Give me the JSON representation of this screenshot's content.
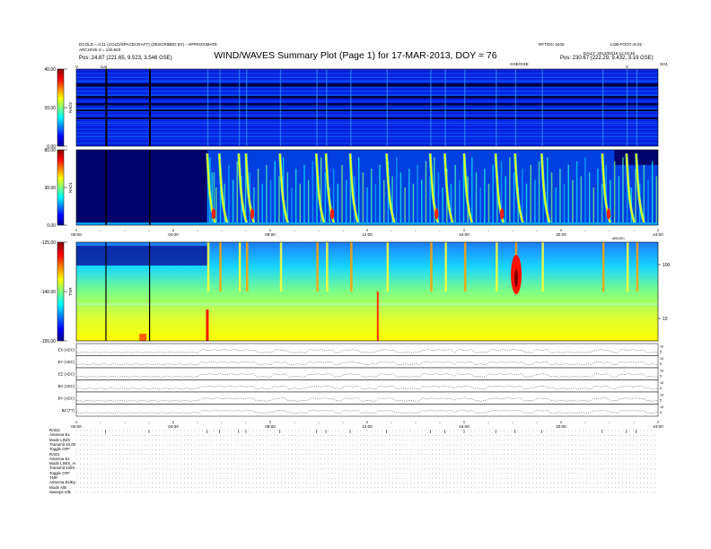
{
  "header": {
    "left_line1": "DCOLD = 0.11 (COLD/SPACECRAFT) (DESCRIBED BY) - APPROXIMATE",
    "left_line2": "ARCHIVE-3 = 130.603",
    "right_line1": "RFT/DC-3440",
    "right_line2": "LOB-FOOT=8.01",
    "right_line3": "DAILY: 2013/03/18 11:18:36",
    "title": "WIND/WAVES Summary Plot (Page 1) for 17-MAR-2013, DOY = 76",
    "pos_left": "Pos:   24.87 (221.65, 9.523, 3.546 GSE)",
    "pos_right": "Pos:   230.67 (222.29, 9.432, 3.19 GSE)",
    "mark_gse": "GSE/GSE",
    "mark_cal": "Cal",
    "mark_v": "V",
    "mark_v2": "V",
    "mark_rt": "SH1"
  },
  "panels": {
    "rad2": {
      "name": "RAD2",
      "ticks": [
        "40.00",
        "20.00",
        "0.00"
      ]
    },
    "rad1": {
      "name": "RAD1",
      "ticks": [
        "80.00",
        "30.00",
        "0.00"
      ]
    },
    "tnr": {
      "name": "TNR",
      "ticks": [
        "-125.00",
        "-140.00",
        "-155.00"
      ],
      "right_ticks": [
        "100",
        "10"
      ],
      "right_tag": "dB/VEC"
    },
    "time_ticks_top": [
      "00:00",
      "04:00",
      "08:00",
      "12:00",
      "16:00",
      "20:00",
      "24:00"
    ],
    "time_ticks_bottom": [
      "00:00",
      "04:00",
      "08:00",
      "12:00",
      "16:00",
      "20:00",
      "24:00"
    ]
  },
  "line_panels": [
    {
      "label": "EX (ADC)",
      "ticks": [
        "10",
        "5"
      ]
    },
    {
      "label": "EY (ADC)",
      "ticks": [
        "10",
        "5"
      ]
    },
    {
      "label": "EZ (ADC)",
      "ticks": [
        "10",
        "5"
      ]
    },
    {
      "label": "BX (ADC)",
      "ticks": [
        "10",
        "5"
      ]
    },
    {
      "label": "BY (ADC)",
      "ticks": [
        "10",
        "5"
      ]
    },
    {
      "label": "BZ (TT)",
      "ticks": [
        "10",
        "5"
      ]
    }
  ],
  "status_labels": [
    "RAD2",
    "Antenna  Ex",
    "Mode  LIN/S",
    "Transmit  10,00",
    "Toggle  OFF",
    "RAD1",
    "Antenna  Ex",
    "Mode  LIN/S_H",
    "Transmit  10/Kt",
    "Toggle  OFF",
    "TNR",
    "Antenna  Ex/Ey",
    "Mode  A/B",
    "Sweeps  A/B"
  ],
  "chart_data": {
    "type": "heatmap",
    "title": "WIND/WAVES Summary Plot (Page 1) for 17-MAR-2013, DOY = 76",
    "x_range_hours": [
      0,
      24
    ],
    "colormap": "jet",
    "panels": [
      {
        "name": "RAD2",
        "ylim": [
          0,
          40
        ]
      },
      {
        "name": "RAD1",
        "ylim": [
          0,
          80
        ]
      },
      {
        "name": "TNR",
        "ylim": [
          -155,
          -125
        ]
      }
    ],
    "bursts_hours": [
      5.4,
      5.9,
      6.7,
      7.0,
      8.4,
      9.9,
      10.3,
      11.3,
      12.8,
      14.6,
      15.2,
      16.0,
      17.3,
      18.1,
      19.2,
      21.7,
      22.7,
      23.1
    ],
    "data_gaps_hours": [
      1.2,
      3.0
    ]
  },
  "colors": {
    "jet": [
      "#00008f",
      "#0000ff",
      "#0080ff",
      "#00ffff",
      "#80ff80",
      "#ffff00",
      "#ff8000",
      "#ff0000",
      "#800000"
    ]
  }
}
